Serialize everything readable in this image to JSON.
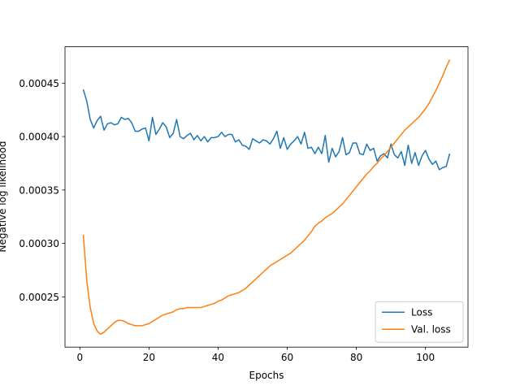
{
  "chart_data": {
    "type": "line",
    "xlabel": "Epochs",
    "ylabel": "Negative log likelihood",
    "x": [
      1,
      2,
      3,
      4,
      5,
      6,
      7,
      8,
      9,
      10,
      11,
      12,
      13,
      14,
      15,
      16,
      17,
      18,
      19,
      20,
      21,
      22,
      23,
      24,
      25,
      26,
      27,
      28,
      29,
      30,
      31,
      32,
      33,
      34,
      35,
      36,
      37,
      38,
      39,
      40,
      41,
      42,
      43,
      44,
      45,
      46,
      47,
      48,
      49,
      50,
      51,
      52,
      53,
      54,
      55,
      56,
      57,
      58,
      59,
      60,
      61,
      62,
      63,
      64,
      65,
      66,
      67,
      68,
      69,
      70,
      71,
      72,
      73,
      74,
      75,
      76,
      77,
      78,
      79,
      80,
      81,
      82,
      83,
      84,
      85,
      86,
      87,
      88,
      89,
      90,
      91,
      92,
      93,
      94,
      95,
      96,
      97,
      98,
      99,
      100,
      101,
      102,
      103,
      104,
      105,
      106,
      107
    ],
    "series": [
      {
        "name": "Loss",
        "color": "#1f77b4",
        "values": [
          0.000444,
          0.000433,
          0.000416,
          0.000408,
          0.000415,
          0.000419,
          0.000406,
          0.000412,
          0.000413,
          0.000411,
          0.000412,
          0.000418,
          0.000416,
          0.000417,
          0.000413,
          0.000405,
          0.000405,
          0.000407,
          0.000408,
          0.000396,
          0.000418,
          0.000402,
          0.000407,
          0.000413,
          0.000409,
          0.000399,
          0.000403,
          0.000416,
          0.0004,
          0.000398,
          0.000401,
          0.000403,
          0.000397,
          0.000401,
          0.000396,
          0.0004,
          0.000395,
          0.000399,
          0.000399,
          0.0004,
          0.000404,
          0.0004,
          0.000402,
          0.000402,
          0.000395,
          0.000397,
          0.000392,
          0.000391,
          0.000388,
          0.000398,
          0.000396,
          0.000394,
          0.000397,
          0.000396,
          0.000393,
          0.000398,
          0.000405,
          0.000389,
          0.000399,
          0.000388,
          0.000393,
          0.000396,
          0.0004,
          0.000393,
          0.000404,
          0.000389,
          0.00039,
          0.000384,
          0.00039,
          0.000384,
          0.000401,
          0.000376,
          0.000389,
          0.000381,
          0.000386,
          0.000399,
          0.000383,
          0.000385,
          0.000394,
          0.000394,
          0.000384,
          0.000383,
          0.000393,
          0.000387,
          0.000389,
          0.000377,
          0.000382,
          0.000384,
          0.00038,
          0.000393,
          0.000383,
          0.00038,
          0.000386,
          0.000373,
          0.000392,
          0.000375,
          0.000385,
          0.000373,
          0.000382,
          0.000387,
          0.000379,
          0.000374,
          0.000377,
          0.000369,
          0.000371,
          0.000372,
          0.000384
        ]
      },
      {
        "name": "Val. loss",
        "color": "#ff7f0e",
        "values": [
          0.000308,
          0.000265,
          0.00024,
          0.000225,
          0.000218,
          0.000215,
          0.000217,
          0.00022,
          0.000223,
          0.000226,
          0.000228,
          0.000228,
          0.000227,
          0.000225,
          0.000224,
          0.000223,
          0.000223,
          0.000223,
          0.000224,
          0.000225,
          0.000227,
          0.000229,
          0.000231,
          0.000233,
          0.000234,
          0.000235,
          0.000236,
          0.000238,
          0.000239,
          0.000239,
          0.00024,
          0.00024,
          0.00024,
          0.00024,
          0.00024,
          0.000241,
          0.000242,
          0.000243,
          0.000244,
          0.000246,
          0.000247,
          0.000249,
          0.000251,
          0.000252,
          0.000253,
          0.000254,
          0.000256,
          0.000258,
          0.000261,
          0.000264,
          0.000267,
          0.00027,
          0.000273,
          0.000276,
          0.000279,
          0.000281,
          0.000283,
          0.000285,
          0.000287,
          0.000289,
          0.000291,
          0.000294,
          0.000297,
          0.0003,
          0.000303,
          0.000307,
          0.000311,
          0.000316,
          0.000319,
          0.000321,
          0.000324,
          0.000326,
          0.000328,
          0.000331,
          0.000334,
          0.000337,
          0.000341,
          0.000345,
          0.000349,
          0.000353,
          0.000357,
          0.000361,
          0.000365,
          0.000368,
          0.000372,
          0.000375,
          0.000379,
          0.000382,
          0.000386,
          0.00039,
          0.000394,
          0.000398,
          0.000402,
          0.000406,
          0.000409,
          0.000412,
          0.000415,
          0.000418,
          0.000422,
          0.000426,
          0.000431,
          0.000437,
          0.000443,
          0.00045,
          0.000457,
          0.000465,
          0.000472
        ]
      }
    ],
    "xlim": [
      -4.3,
      112.3
    ],
    "xticks": [
      0,
      20,
      40,
      60,
      80,
      100
    ],
    "ylim": [
      0.000203,
      0.000484
    ],
    "yticks": [
      0.00025,
      {
        "value": 0.0003,
        "label": "0.00030"
      },
      0.00035,
      {
        "value": 0.0004,
        "label": "0.00040"
      },
      0.00045
    ],
    "legend": "lower right"
  }
}
